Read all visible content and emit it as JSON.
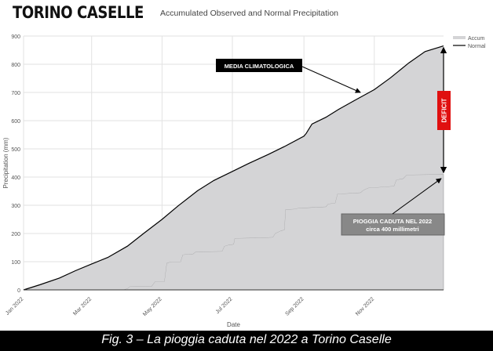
{
  "header": {
    "station": "TORINO CASELLE",
    "subtitle": "Accumulated Observed and Normal Precipitation"
  },
  "caption": "Fig. 3 – La pioggia caduta nel 2022 a Torino Caselle",
  "colors": {
    "accum_fill": "#d4d4d6",
    "normal_line": "#000000",
    "deficit_box": "#e01010",
    "media_box": "#000000",
    "pioggia_box": "#888888",
    "grid": "#e2e2e2"
  },
  "chart_data": {
    "type": "area",
    "title": "Accumulated Observed and Normal Precipitation",
    "xlabel": "Date",
    "ylabel": "Precipitation (mm)",
    "x_range": [
      "2022-01-01",
      "2022-12-31"
    ],
    "ylim": [
      0,
      900
    ],
    "yticks": [
      0,
      100,
      200,
      300,
      400,
      500,
      600,
      700,
      800,
      900
    ],
    "xticks": [
      {
        "date": "2022-01-01",
        "label": "Jan 2022"
      },
      {
        "date": "2022-03-01",
        "label": "Mar 2022"
      },
      {
        "date": "2022-05-01",
        "label": "May 2022"
      },
      {
        "date": "2022-07-01",
        "label": "Jul 2022"
      },
      {
        "date": "2022-09-01",
        "label": "Sep 2022"
      },
      {
        "date": "2022-11-01",
        "label": "Nov 2022"
      }
    ],
    "grid": true,
    "legend_position": "top-right",
    "series": [
      {
        "name": "Accum",
        "kind": "area",
        "points": [
          [
            "2022-01-01",
            0
          ],
          [
            "2022-03-28",
            0
          ],
          [
            "2022-04-01",
            5
          ],
          [
            "2022-04-03",
            12
          ],
          [
            "2022-04-22",
            13
          ],
          [
            "2022-04-25",
            30
          ],
          [
            "2022-05-03",
            30
          ],
          [
            "2022-05-05",
            95
          ],
          [
            "2022-05-09",
            100
          ],
          [
            "2022-05-17",
            100
          ],
          [
            "2022-05-19",
            125
          ],
          [
            "2022-05-28",
            128
          ],
          [
            "2022-05-30",
            135
          ],
          [
            "2022-06-22",
            137
          ],
          [
            "2022-06-24",
            155
          ],
          [
            "2022-06-28",
            160
          ],
          [
            "2022-07-02",
            162
          ],
          [
            "2022-07-03",
            183
          ],
          [
            "2022-07-25",
            185
          ],
          [
            "2022-08-05",
            187
          ],
          [
            "2022-08-07",
            200
          ],
          [
            "2022-08-12",
            210
          ],
          [
            "2022-08-15",
            213
          ],
          [
            "2022-08-16",
            285
          ],
          [
            "2022-08-24",
            287
          ],
          [
            "2022-08-27",
            290
          ],
          [
            "2022-09-05",
            292
          ],
          [
            "2022-09-20",
            295
          ],
          [
            "2022-09-22",
            305
          ],
          [
            "2022-09-28",
            308
          ],
          [
            "2022-09-30",
            340
          ],
          [
            "2022-10-20",
            345
          ],
          [
            "2022-10-22",
            352
          ],
          [
            "2022-10-24",
            357
          ],
          [
            "2022-10-27",
            362
          ],
          [
            "2022-11-08",
            365
          ],
          [
            "2022-11-18",
            368
          ],
          [
            "2022-11-20",
            390
          ],
          [
            "2022-11-26",
            395
          ],
          [
            "2022-11-29",
            408
          ],
          [
            "2022-12-31",
            410
          ]
        ]
      },
      {
        "name": "Normal",
        "kind": "line",
        "points": [
          [
            "2022-01-01",
            0
          ],
          [
            "2022-01-15",
            18
          ],
          [
            "2022-02-01",
            42
          ],
          [
            "2022-02-15",
            68
          ],
          [
            "2022-03-01",
            92
          ],
          [
            "2022-03-15",
            115
          ],
          [
            "2022-04-01",
            155
          ],
          [
            "2022-04-15",
            200
          ],
          [
            "2022-05-01",
            250
          ],
          [
            "2022-05-15",
            298
          ],
          [
            "2022-06-01",
            352
          ],
          [
            "2022-06-15",
            388
          ],
          [
            "2022-07-01",
            420
          ],
          [
            "2022-07-15",
            448
          ],
          [
            "2022-08-01",
            480
          ],
          [
            "2022-08-15",
            508
          ],
          [
            "2022-09-01",
            545
          ],
          [
            "2022-09-03",
            555
          ],
          [
            "2022-09-08",
            588
          ],
          [
            "2022-09-20",
            612
          ],
          [
            "2022-10-01",
            640
          ],
          [
            "2022-10-15",
            672
          ],
          [
            "2022-11-01",
            710
          ],
          [
            "2022-11-15",
            752
          ],
          [
            "2022-12-01",
            805
          ],
          [
            "2022-12-15",
            845
          ],
          [
            "2022-12-31",
            865
          ]
        ]
      }
    ],
    "annotations": {
      "media": {
        "text": "MEDIA CLIMATOLOGICA",
        "points_to": [
          "2022-10-20",
          700
        ]
      },
      "pioggia": {
        "lines": [
          "PIOGGIA CADUTA NEL 2022",
          "circa 400 millimetri"
        ],
        "points_to": [
          "2022-12-29",
          395
        ]
      },
      "deficit": {
        "text": "DEFICIT",
        "from_value": 410,
        "to_value": 865,
        "date": "2022-12-31"
      }
    }
  }
}
